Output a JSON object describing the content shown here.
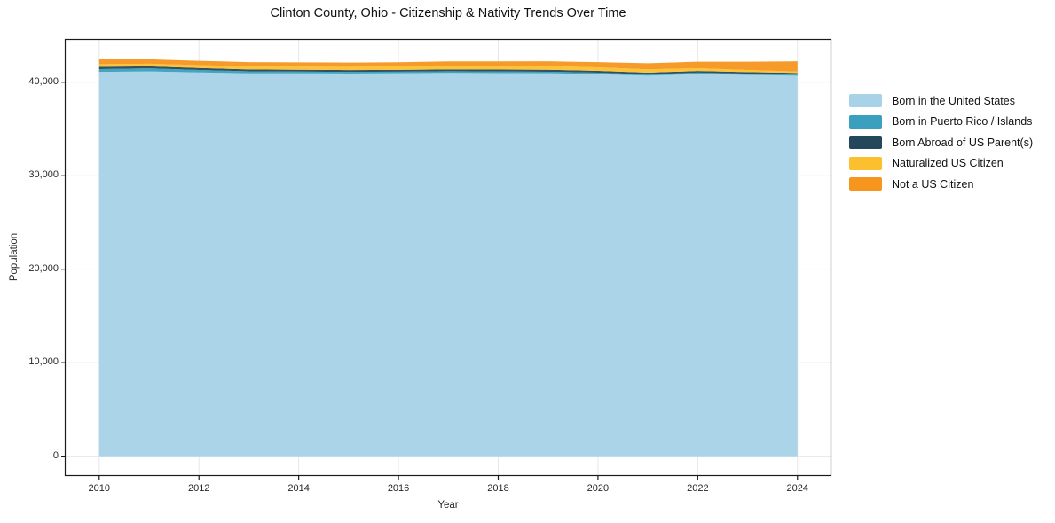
{
  "chart_data": {
    "type": "area",
    "stacked": true,
    "title": "Clinton County, Ohio - Citizenship & Nativity Trends Over Time",
    "xlabel": "Year",
    "ylabel": "Population",
    "x": [
      2010,
      2011,
      2012,
      2013,
      2014,
      2015,
      2016,
      2017,
      2018,
      2019,
      2020,
      2021,
      2022,
      2023,
      2024
    ],
    "series": [
      {
        "name": "Born in the United States",
        "color": "#a8d2e8",
        "values": [
          41100,
          41150,
          41050,
          40950,
          40950,
          40930,
          40960,
          41000,
          40980,
          40960,
          40870,
          40700,
          40880,
          40780,
          40700
        ]
      },
      {
        "name": "Born in Puerto Rico / Islands",
        "color": "#3aa0bd",
        "values": [
          300,
          330,
          260,
          210,
          185,
          170,
          170,
          180,
          170,
          160,
          150,
          140,
          150,
          140,
          140
        ]
      },
      {
        "name": "Born Abroad of US Parent(s)",
        "color": "#25475c",
        "values": [
          240,
          220,
          215,
          205,
          200,
          195,
          190,
          190,
          200,
          210,
          190,
          180,
          170,
          160,
          150
        ]
      },
      {
        "name": "Naturalized US Citizen",
        "color": "#fcc02e",
        "values": [
          290,
          280,
          300,
          320,
          340,
          355,
          370,
          380,
          385,
          390,
          380,
          360,
          300,
          220,
          150
        ]
      },
      {
        "name": "Not a US Citizen",
        "color": "#f6961e",
        "values": [
          530,
          480,
          470,
          465,
          450,
          455,
          450,
          480,
          490,
          520,
          560,
          650,
          700,
          900,
          1100
        ]
      }
    ],
    "xlim": [
      2009.31,
      2024.68
    ],
    "ylim": [
      -2125,
      44625
    ],
    "x_ticks": [
      2010,
      2012,
      2014,
      2016,
      2018,
      2020,
      2022,
      2024
    ],
    "x_tick_labels": [
      "2010",
      "2012",
      "2014",
      "2016",
      "2018",
      "2020",
      "2022",
      "2024"
    ],
    "y_ticks": [
      0,
      10000,
      20000,
      30000,
      40000
    ],
    "y_tick_labels": [
      "0",
      "10,000",
      "20,000",
      "30,000",
      "40,000"
    ],
    "grid": true,
    "grid_color": "#e7e7e7",
    "frame_color": "#1a1a1a",
    "legend_position": "right"
  }
}
